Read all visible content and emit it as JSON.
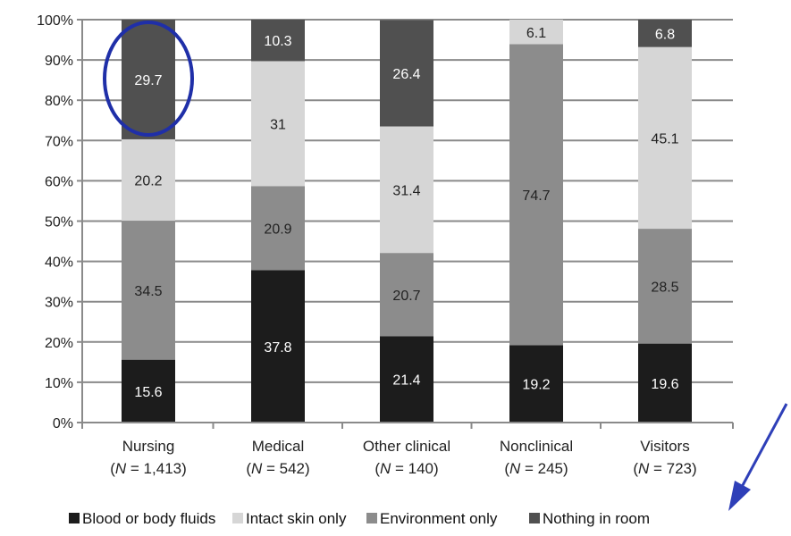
{
  "colors": {
    "blood": "#1c1c1c",
    "intact": "#d6d6d6",
    "environment": "#8c8c8c",
    "nothing": "#505050",
    "highlight": "#1f2fa8",
    "arrow": "#2e3fb8"
  },
  "chart_data": {
    "type": "bar",
    "stacked": true,
    "ylim": [
      0,
      100
    ],
    "yticks": [
      "0%",
      "10%",
      "20%",
      "30%",
      "40%",
      "50%",
      "60%",
      "70%",
      "80%",
      "90%",
      "100%"
    ],
    "categories": [
      {
        "name": "Nursing",
        "n": "1,413"
      },
      {
        "name": "Medical",
        "n": "542"
      },
      {
        "name": "Other clinical",
        "n": "140"
      },
      {
        "name": "Nonclinical",
        "n": "245"
      },
      {
        "name": "Visitors",
        "n": "723"
      }
    ],
    "series": [
      {
        "name": "Blood or body fluids",
        "key": "blood",
        "values": [
          15.6,
          37.8,
          21.4,
          19.2,
          19.6
        ]
      },
      {
        "name": "Environment only",
        "key": "environment",
        "values": [
          34.5,
          20.9,
          20.7,
          74.7,
          28.5
        ]
      },
      {
        "name": "Intact skin only",
        "key": "intact",
        "values": [
          20.2,
          31,
          31.4,
          6.1,
          45.1
        ]
      },
      {
        "name": "Nothing in room",
        "key": "nothing",
        "values": [
          29.7,
          10.3,
          26.4,
          0,
          6.8
        ]
      }
    ],
    "labels": [
      [
        "15.6",
        "37.8",
        "21.4",
        "19.2",
        "19.6"
      ],
      [
        "34.5",
        "20.9",
        "20.7",
        "74.7",
        "28.5"
      ],
      [
        "20.2",
        "31",
        "31.4",
        "6.1",
        "45.1"
      ],
      [
        "29.7",
        "10.3",
        "26.4",
        "",
        "6.8"
      ]
    ],
    "legend": [
      {
        "label": "Blood or body fluids",
        "key": "blood"
      },
      {
        "label": "Intact skin only",
        "key": "intact"
      },
      {
        "label": "Environment only",
        "key": "environment"
      },
      {
        "label": "Nothing in room",
        "key": "nothing"
      }
    ],
    "legend_position": "bottom",
    "grid": true,
    "highlighted_category": "Nursing"
  }
}
